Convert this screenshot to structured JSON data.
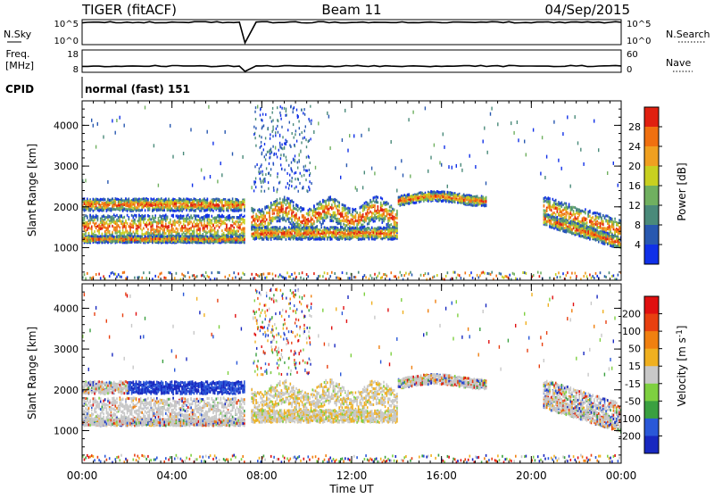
{
  "header": {
    "radar": "TIGER (fitACF)",
    "beam": "Beam 11",
    "date": "04/Sep/2015"
  },
  "top_panels": {
    "nsky_label": "N.Sky",
    "nsearch_label": "N.Search",
    "nsky_ticks": [
      "10^5",
      "10^0"
    ],
    "nsearch_ticks": [
      "10^5",
      "10^0"
    ],
    "freq_label": "Freq.",
    "freq_unit": "[MHz]",
    "freq_ticks": [
      "18",
      "8"
    ],
    "nave_label": "Nave",
    "nave_ticks": [
      "60",
      "0"
    ],
    "cpid_label": "CPID",
    "cpid_value": "normal (fast) 151"
  },
  "chart_data": [
    {
      "type": "heatmap",
      "name": "power",
      "xlabel": "",
      "ylabel": "Slant Range [km]",
      "x_range_hours": [
        0,
        24
      ],
      "ylim": [
        200,
        4600
      ],
      "yticks": [
        "1000",
        "2000",
        "3000",
        "4000"
      ],
      "colorbar": {
        "label": "Power [dB]",
        "ticks": [
          "4",
          "8",
          "12",
          "16",
          "20",
          "24",
          "28"
        ],
        "range": [
          0,
          32
        ],
        "colors": [
          "#1030e8",
          "#2858b0",
          "#4a8a7a",
          "#70b060",
          "#c8d020",
          "#f0a020",
          "#f07010",
          "#e02010"
        ]
      },
      "data_gap_hours": [
        7.25,
        7.5
      ]
    },
    {
      "type": "heatmap",
      "name": "velocity",
      "xlabel": "Time UT",
      "ylabel": "Slant Range [km]",
      "x_range_hours": [
        0,
        24
      ],
      "ylim": [
        200,
        4600
      ],
      "yticks": [
        "1000",
        "2000",
        "3000",
        "4000"
      ],
      "xticks": [
        "00:00",
        "04:00",
        "08:00",
        "12:00",
        "16:00",
        "20:00",
        "00:00"
      ],
      "colorbar": {
        "label": "Velocity [m s-1]",
        "ticks": [
          "200",
          "100",
          "50",
          "15",
          "-15",
          "-50",
          "-100",
          "-200"
        ],
        "colors": [
          "#1828c0",
          "#2a58d8",
          "#3aa040",
          "#7ed040",
          "#c8c8c8",
          "#f0b020",
          "#f08010",
          "#e84010",
          "#e01010"
        ]
      },
      "data_gap_hours": [
        7.25,
        7.5
      ]
    }
  ]
}
